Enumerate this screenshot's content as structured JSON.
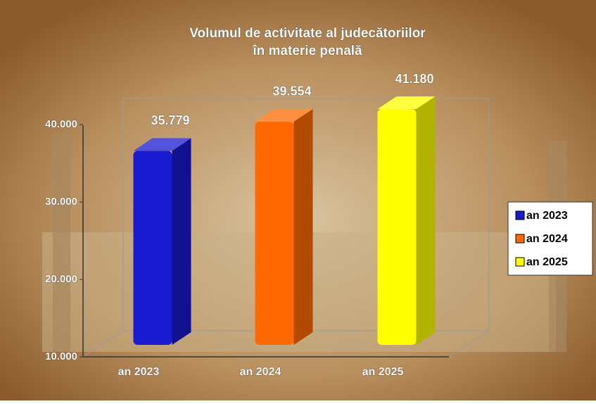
{
  "chart_data": {
    "type": "bar3d",
    "title": "Volumul de activitate al judecătoriilor",
    "subtitle": "în materie penală",
    "categories": [
      "an 2023",
      "an 2024",
      "an 2025"
    ],
    "values": [
      35779,
      39554,
      41180
    ],
    "value_labels": [
      "35.779",
      "39.554",
      "41.180"
    ],
    "colors": [
      "#1a1ad0",
      "#ff6a00",
      "#ffff00"
    ],
    "ylim": [
      10000,
      42000
    ],
    "yticks": [
      {
        "value": 10000,
        "label": "10.000"
      },
      {
        "value": 20000,
        "label": "20.000"
      },
      {
        "value": 30000,
        "label": "30.000"
      },
      {
        "value": 40000,
        "label": "40.000"
      }
    ],
    "legend": "right"
  }
}
